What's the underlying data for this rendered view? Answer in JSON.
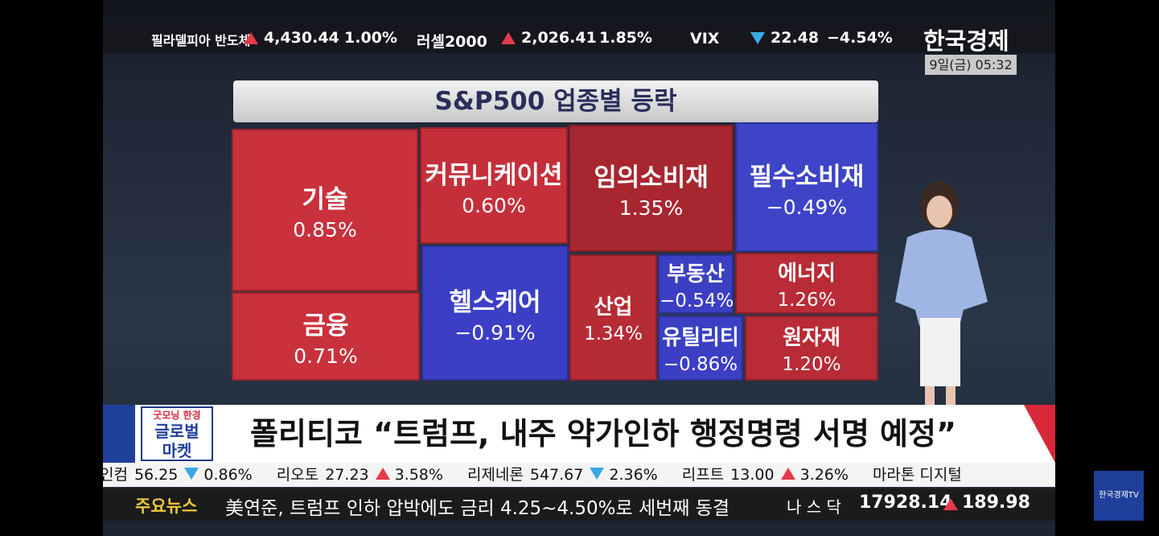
{
  "top_ticker": [
    {
      "name": "필라델피아 반도체",
      "direction": "up",
      "value": "4,430.44",
      "change": "1.00%"
    },
    {
      "name": "러셀2000",
      "direction": "up",
      "value": "2,026.41",
      "change": "1.85%"
    },
    {
      "name": "VIX",
      "direction": "down",
      "value": "22.48",
      "change": "−4.54%"
    }
  ],
  "logo": "한국경제",
  "time": "9일(금) 05:32",
  "treemap": {
    "title": "S&P500 업종별 등락",
    "cells": [
      {
        "label": "기술",
        "value": "0.85%",
        "color": "#c9313c"
      },
      {
        "label": "금융",
        "value": "0.71%",
        "color": "#c9313c"
      },
      {
        "label": "커뮤니케이션",
        "value": "0.60%",
        "color": "#c52f3a"
      },
      {
        "label": "헬스케어",
        "value": "−0.91%",
        "color": "#3b3fc6"
      },
      {
        "label": "임의소비재",
        "value": "1.35%",
        "color": "#a8262f"
      },
      {
        "label": "필수소비재",
        "value": "−0.49%",
        "color": "#3d44c8"
      },
      {
        "label": "산업",
        "value": "1.34%",
        "color": "#b72b35"
      },
      {
        "label": "부동산",
        "value": "−0.54%",
        "color": "#3a3fc4"
      },
      {
        "label": "유틸리티",
        "value": "−0.86%",
        "color": "#3a3fc4"
      },
      {
        "label": "에너지",
        "value": "1.26%",
        "color": "#b92b36"
      },
      {
        "label": "원자재",
        "value": "1.20%",
        "color": "#b92b36"
      }
    ]
  },
  "headline": {
    "badge": [
      "굿모닝 한경",
      "글로벌",
      "마켓"
    ],
    "text": "폴리티코 “트럼프, 내주 약가인하 행정명령 서명 예정”"
  },
  "stock_ticker": [
    {
      "name": "인컴",
      "price": "56.25",
      "direction": "down",
      "change": "0.86%"
    },
    {
      "name": "리오토",
      "price": "27.23",
      "direction": "up",
      "change": "3.58%"
    },
    {
      "name": "리제네론",
      "price": "547.67",
      "direction": "down",
      "change": "2.36%"
    },
    {
      "name": "리프트",
      "price": "13.00",
      "direction": "up",
      "change": "3.26%"
    },
    {
      "name": "마라톤 디지털",
      "price": "",
      "direction": "",
      "change": ""
    }
  ],
  "news": {
    "label": "주요뉴스",
    "text": "美연준, 트럼프 인하 압박에도 금리 4.25~4.50%로 세번째 동결",
    "index_name": "나 스 닥",
    "index_value": "17928.14",
    "index_direction": "up",
    "index_change": "189.98"
  },
  "side_logo": "한국경제TV"
}
